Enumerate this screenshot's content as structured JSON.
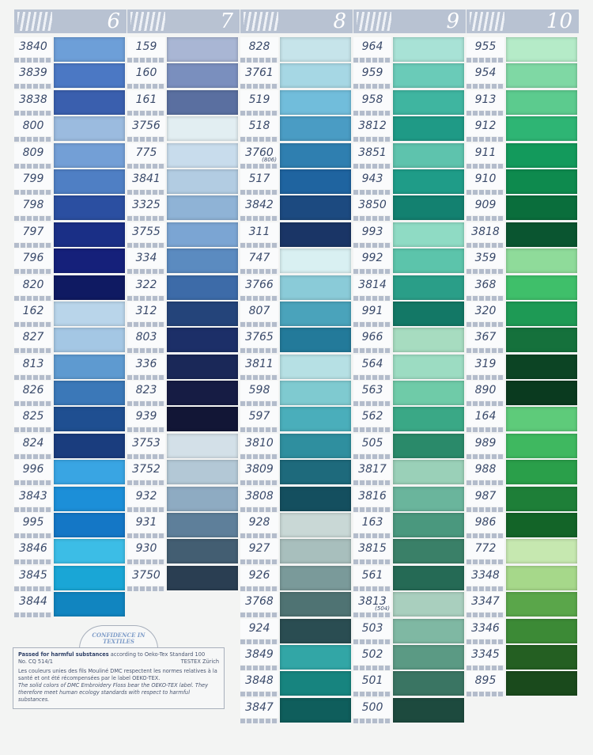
{
  "columns": [
    {
      "number": "6",
      "items": [
        [
          "3840",
          "#6d9fd8"
        ],
        [
          "3839",
          "#4b78c4"
        ],
        [
          "3838",
          "#3a5fae"
        ],
        [
          "800",
          "#9bbbdf"
        ],
        [
          "809",
          "#739fd6"
        ],
        [
          "799",
          "#4f7fc4"
        ],
        [
          "798",
          "#2b4fa1"
        ],
        [
          "797",
          "#1a2f86"
        ],
        [
          "796",
          "#15207a"
        ],
        [
          "820",
          "#0f1a62"
        ],
        [
          "162",
          "#b9d5ea"
        ],
        [
          "827",
          "#a4c7e4"
        ],
        [
          "813",
          "#5e9ad0"
        ],
        [
          "826",
          "#3b78b8"
        ],
        [
          "825",
          "#1f4f91"
        ],
        [
          "824",
          "#1a3d7e"
        ],
        [
          "996",
          "#39a5e3"
        ],
        [
          "3843",
          "#1c8fd8"
        ],
        [
          "995",
          "#1477c6"
        ],
        [
          "3846",
          "#3cbde6"
        ],
        [
          "3845",
          "#1aa6d6"
        ],
        [
          "3844",
          "#1185c0"
        ]
      ]
    },
    {
      "number": "7",
      "items": [
        [
          "159",
          "#a9b6d4"
        ],
        [
          "160",
          "#7a8fbe"
        ],
        [
          "161",
          "#5a6fa0"
        ],
        [
          "3756",
          "#e2eef2"
        ],
        [
          "775",
          "#c8dcec"
        ],
        [
          "3841",
          "#b2cce2"
        ],
        [
          "3325",
          "#8fb3d6"
        ],
        [
          "3755",
          "#7ba5d3"
        ],
        [
          "334",
          "#5b8bc0"
        ],
        [
          "322",
          "#3d6ba8"
        ],
        [
          "312",
          "#24447a"
        ],
        [
          "803",
          "#1c2f68"
        ],
        [
          "336",
          "#1a2858"
        ],
        [
          "823",
          "#161c44"
        ],
        [
          "939",
          "#121636"
        ],
        [
          "3753",
          "#d3e0e8"
        ],
        [
          "3752",
          "#b3c8d6"
        ],
        [
          "932",
          "#8eabc2"
        ],
        [
          "931",
          "#5e7f9a"
        ],
        [
          "930",
          "#435e72"
        ],
        [
          "3750",
          "#2a3e52"
        ]
      ]
    },
    {
      "number": "8",
      "items": [
        [
          "828",
          "#c6e4ea"
        ],
        [
          "3761",
          "#a6d7e4"
        ],
        [
          "519",
          "#71bddb"
        ],
        [
          "518",
          "#4a9cc4"
        ],
        [
          "3760",
          "#2f7fb0",
          "(806)"
        ],
        [
          "517",
          "#1f64a0"
        ],
        [
          "3842",
          "#1c4a80"
        ],
        [
          "311",
          "#1a3566"
        ],
        [
          "747",
          "#d9f0f2"
        ],
        [
          "3766",
          "#8acbd8"
        ],
        [
          "807",
          "#4aa3bb"
        ],
        [
          "3765",
          "#237a9a"
        ],
        [
          "3811",
          "#b6e0e4"
        ],
        [
          "598",
          "#7fcad0"
        ],
        [
          "597",
          "#4aaebb"
        ],
        [
          "3810",
          "#2f8f9f"
        ],
        [
          "3809",
          "#1e6a7c"
        ],
        [
          "3808",
          "#144f5f"
        ],
        [
          "928",
          "#c9d8d6"
        ],
        [
          "927",
          "#a8bfbd"
        ],
        [
          "926",
          "#7a9a9a"
        ],
        [
          "3768",
          "#4f7373"
        ],
        [
          "924",
          "#2a4d52"
        ],
        [
          "3849",
          "#32a6a6"
        ],
        [
          "3848",
          "#17847f"
        ],
        [
          "3847",
          "#0f5e5c"
        ]
      ]
    },
    {
      "number": "9",
      "items": [
        [
          "964",
          "#a8e2d6"
        ],
        [
          "959",
          "#6acbb8"
        ],
        [
          "958",
          "#3fb5a0"
        ],
        [
          "3812",
          "#1f9a86"
        ],
        [
          "3851",
          "#5ec3ad"
        ],
        [
          "943",
          "#1f9c88"
        ],
        [
          "3850",
          "#138170"
        ],
        [
          "993",
          "#8fdbc4"
        ],
        [
          "992",
          "#5cc4ab"
        ],
        [
          "3814",
          "#2a9e88"
        ],
        [
          "991",
          "#137866"
        ],
        [
          "966",
          "#a7dcc0"
        ],
        [
          "564",
          "#9cdcc2"
        ],
        [
          "563",
          "#6fcba8"
        ],
        [
          "562",
          "#3aa886"
        ],
        [
          "505",
          "#2a8a6a"
        ],
        [
          "3817",
          "#9ad0b8"
        ],
        [
          "3816",
          "#6ab59c"
        ],
        [
          "163",
          "#4a987e"
        ],
        [
          "3815",
          "#3a8068"
        ],
        [
          "561",
          "#256a55"
        ],
        [
          "3813",
          "#a9cfbe",
          "(504)"
        ],
        [
          "503",
          "#7fb8a3"
        ],
        [
          "502",
          "#5b9a84"
        ],
        [
          "501",
          "#3a7563"
        ],
        [
          "500",
          "#1d4a3e"
        ]
      ]
    },
    {
      "number": "10",
      "items": [
        [
          "955",
          "#b5ebc8"
        ],
        [
          "954",
          "#7fd8a4"
        ],
        [
          "913",
          "#5ccb8e"
        ],
        [
          "912",
          "#2eb574"
        ],
        [
          "911",
          "#139a5c"
        ],
        [
          "910",
          "#0e8a4e"
        ],
        [
          "909",
          "#0a6e3c"
        ],
        [
          "3818",
          "#0a5530"
        ],
        [
          "359",
          "#8fdb9a"
        ],
        [
          "368",
          "#3fbf6a"
        ],
        [
          "320",
          "#1e9a55"
        ],
        [
          "367",
          "#15713c"
        ],
        [
          "319",
          "#0c4424"
        ],
        [
          "890",
          "#0a3a1f"
        ],
        [
          "164",
          "#5ecb7a"
        ],
        [
          "989",
          "#3fb860"
        ],
        [
          "988",
          "#2a9f4a"
        ],
        [
          "987",
          "#1e7f38"
        ],
        [
          "986",
          "#136428"
        ],
        [
          "772",
          "#c6e8b0"
        ],
        [
          "3348",
          "#a6d88a"
        ],
        [
          "3347",
          "#5aa64a"
        ],
        [
          "3346",
          "#3c8a36"
        ],
        [
          "3345",
          "#245f22"
        ],
        [
          "895",
          "#1a4a1c"
        ]
      ]
    }
  ],
  "certificate": {
    "logo_text": "CONFIDENCE IN TEXTILES",
    "passed_bold": "Passed for harmful substances",
    "passed_rest": " according to Oeko-Tex Standard 100",
    "number": "No. CQ 514/1",
    "institute": "TESTEX Zürich",
    "french": "Les couleurs unies des fils Mouliné DMC respectent les normes relatives à la santé et ont été récompensées par le label OEKO-TEX.",
    "english": "The solid colors of DMC Embroidery Floss bear the OEKO-TEX label. They therefore meet human ecology standards with respect to harmful substances."
  }
}
